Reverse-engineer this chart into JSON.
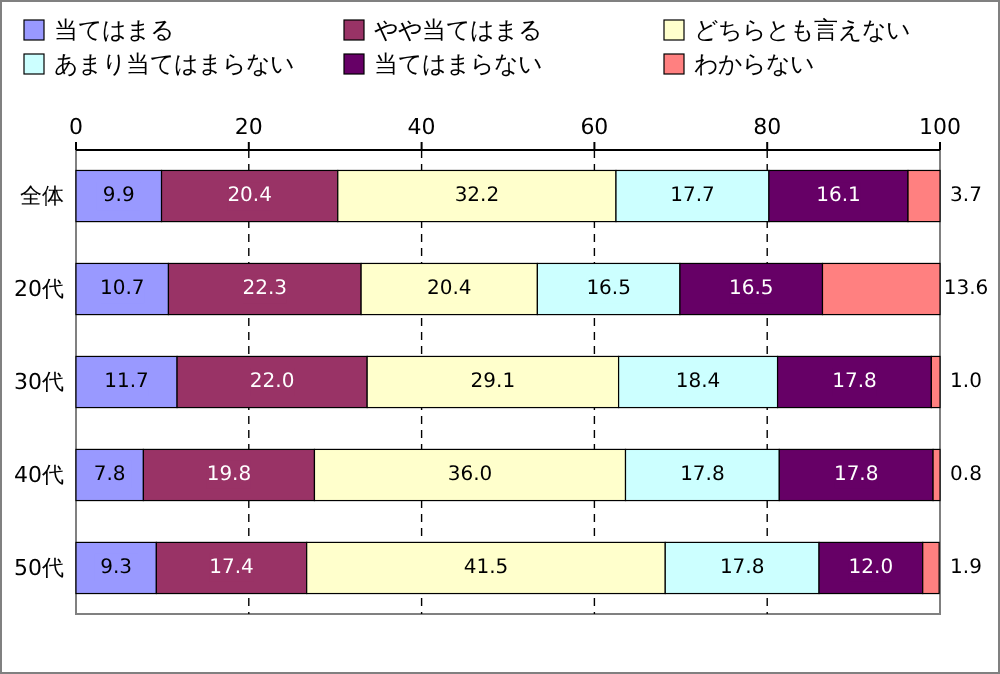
{
  "chart_data": {
    "type": "bar",
    "orientation": "horizontal",
    "stacked": true,
    "grid": "x",
    "legend": "top",
    "categories": [
      "全体",
      "20代",
      "30代",
      "40代",
      "50代"
    ],
    "xlim": [
      0,
      100
    ],
    "xticks": [
      0,
      20,
      40,
      60,
      80,
      100
    ],
    "series": [
      {
        "name": "当てはまる",
        "color": "#9999ff",
        "values": [
          9.9,
          10.7,
          11.7,
          7.8,
          9.3
        ],
        "value_labels": [
          "9.9",
          "10.7",
          "11.7",
          "7.8",
          "9.3"
        ]
      },
      {
        "name": "やや当てはまる",
        "color": "#993366",
        "values": [
          20.4,
          22.3,
          22.0,
          19.8,
          17.4
        ],
        "value_labels": [
          "20.4",
          "22.3",
          "22.0",
          "19.8",
          "17.4"
        ]
      },
      {
        "name": "どちらとも言えない",
        "color": "#ffffcc",
        "values": [
          32.2,
          20.4,
          29.1,
          36.0,
          41.5
        ],
        "value_labels": [
          "32.2",
          "20.4",
          "29.1",
          "36.0",
          "41.5"
        ]
      },
      {
        "name": "あまり当てはまらない",
        "color": "#ccffff",
        "values": [
          17.7,
          16.5,
          18.4,
          17.8,
          17.8
        ],
        "value_labels": [
          "17.7",
          "16.5",
          "18.4",
          "17.8",
          "17.8"
        ]
      },
      {
        "name": "当てはまらない",
        "color": "#660066",
        "values": [
          16.1,
          16.5,
          17.8,
          17.8,
          12.0
        ],
        "value_labels": [
          "16.1",
          "16.5",
          "17.8",
          "17.8",
          "12.0"
        ]
      },
      {
        "name": "わからない",
        "color": "#ff8080",
        "values": [
          3.7,
          13.6,
          1.0,
          0.8,
          1.9
        ],
        "value_labels": [
          "3.7",
          "13.6",
          "1.0",
          "0.8",
          "1.9"
        ]
      }
    ]
  }
}
